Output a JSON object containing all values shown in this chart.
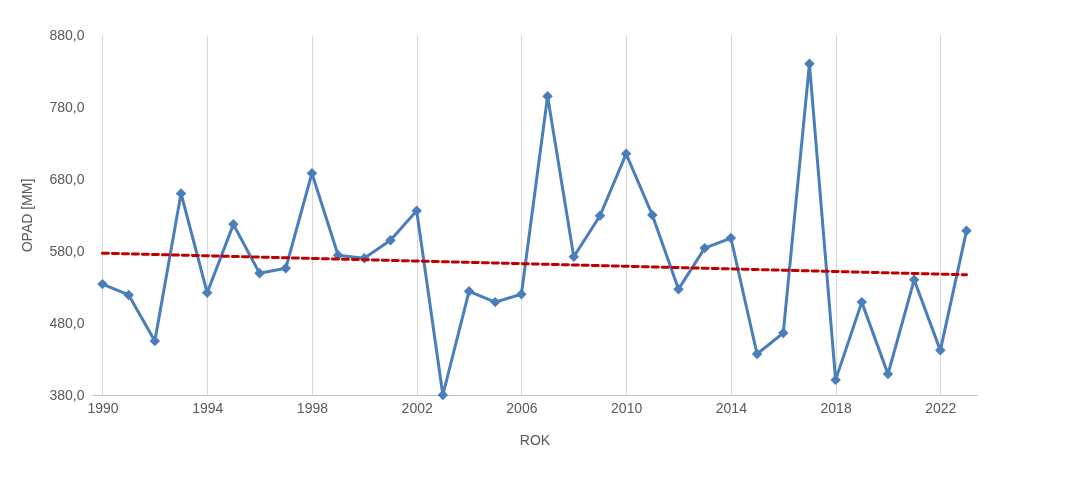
{
  "chart_data": {
    "type": "line",
    "xlabel": "ROK",
    "ylabel": "OPAD [MM]",
    "xlim": [
      1989.6,
      2023.4
    ],
    "xticks": [
      1990,
      1994,
      1998,
      2002,
      2006,
      2010,
      2014,
      2018,
      2022
    ],
    "ylim": [
      380,
      880
    ],
    "yticks": [
      {
        "value": 380,
        "label": "380,0"
      },
      {
        "value": 480,
        "label": "480,0"
      },
      {
        "value": 580,
        "label": "580,0"
      },
      {
        "value": 680,
        "label": "680,0"
      },
      {
        "value": 780,
        "label": "780,0"
      },
      {
        "value": 880,
        "label": "880,0"
      }
    ],
    "grid": "x",
    "series": [
      {
        "type": "line",
        "color": "#4a7ebb",
        "marker": "diamond",
        "line_style": "solid",
        "x": [
          1990,
          1991,
          1992,
          1993,
          1994,
          1995,
          1996,
          1997,
          1998,
          1999,
          2000,
          2001,
          2002,
          2003,
          2004,
          2005,
          2006,
          2007,
          2008,
          2009,
          2010,
          2011,
          2012,
          2013,
          2014,
          2015,
          2016,
          2017,
          2018,
          2019,
          2020,
          2021,
          2022,
          2023
        ],
        "values": [
          534,
          519,
          455,
          660,
          522,
          617,
          549,
          556,
          688,
          574,
          570,
          595,
          636,
          380,
          524,
          509,
          520,
          795,
          572,
          629,
          715,
          630,
          527,
          584,
          598,
          437,
          466,
          840,
          401,
          509,
          409,
          540,
          442,
          608
        ]
      },
      {
        "type": "line",
        "color": "#c00000",
        "marker": "none",
        "line_style": "dashed",
        "x": [
          1990,
          2023
        ],
        "values": [
          577,
          547
        ]
      }
    ]
  }
}
